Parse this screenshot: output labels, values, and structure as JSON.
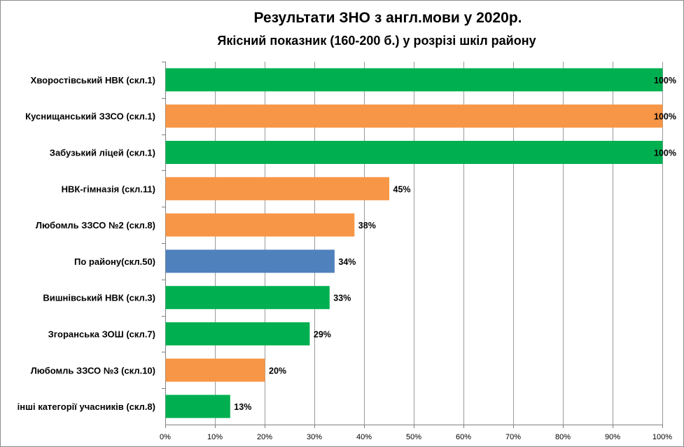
{
  "chart_data": {
    "type": "bar",
    "orientation": "horizontal",
    "title": "Результати  ЗНО з англ.мови у 2020р.",
    "subtitle": "Якісний показник (160-200  б.) у розрізі шкіл району",
    "categories": [
      "Хворостівський НВК (скл.1)",
      "Куснищанський ЗЗСО (скл.1)",
      "Забузький ліцей (скл.1)",
      "НВК-гімназія (скл.11)",
      "Любомль ЗЗСО №2 (скл.8)",
      "По району(скл.50)",
      "Вишнівський НВК (скл.3)",
      "Згоранська ЗОШ (скл.7)",
      "Любомль ЗЗСО №3 (скл.10)",
      "інші категорії учасників (скл.8)"
    ],
    "values": [
      100,
      100,
      100,
      45,
      38,
      34,
      33,
      29,
      20,
      13
    ],
    "value_labels": [
      "100%",
      "100%",
      "100%",
      "45%",
      "38%",
      "34%",
      "33%",
      "29%",
      "20%",
      "13%"
    ],
    "bar_colors": [
      "#00B050",
      "#F79646",
      "#00B050",
      "#F79646",
      "#F79646",
      "#4F81BD",
      "#00B050",
      "#00B050",
      "#F79646",
      "#00B050"
    ],
    "xlim": [
      0,
      100
    ],
    "x_ticks": [
      0,
      10,
      20,
      30,
      40,
      50,
      60,
      70,
      80,
      90,
      100
    ],
    "x_tick_labels": [
      "0%",
      "10%",
      "20%",
      "30%",
      "40%",
      "50%",
      "60%",
      "70%",
      "80%",
      "90%",
      "100%"
    ],
    "grid": true,
    "legend": false
  }
}
